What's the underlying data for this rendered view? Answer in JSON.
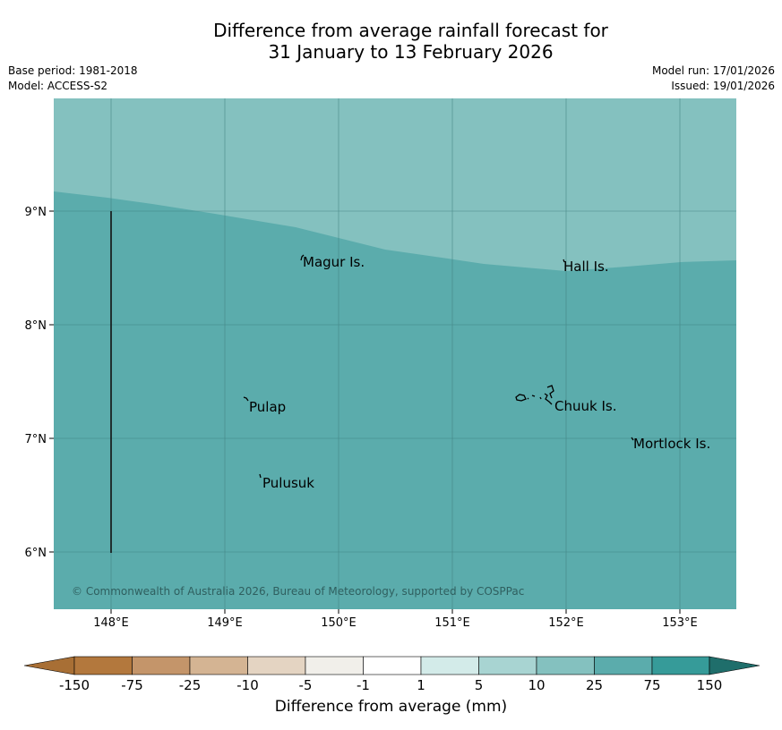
{
  "header": {
    "title_line1": "Difference from average rainfall forecast for",
    "title_line2": "31 January to 13 February 2026",
    "base_period": "Base period: 1981-2018",
    "model": "Model: ACCESS-S2",
    "model_run": "Model run: 17/01/2026",
    "issued": "Issued: 19/01/2026"
  },
  "map": {
    "lon_ticks": [
      "148°E",
      "149°E",
      "150°E",
      "151°E",
      "152°E",
      "153°E"
    ],
    "lat_ticks": [
      "9°N",
      "8°N",
      "7°N",
      "6°N"
    ],
    "places": [
      "Magur Is.",
      "Hall Is.",
      "Pulap",
      "Chuuk Is.",
      "Mortlock Is.",
      "Pulusuk"
    ],
    "copyright": "© Commonwealth of Australia 2026, Bureau of Meteorology, supported by COSPPac",
    "colors": {
      "band_10_25": "#84c1bf",
      "band_25_75": "#5bacac",
      "grid": "#3f7f7f"
    }
  },
  "colorbar": {
    "labels": [
      "-150",
      "-75",
      "-25",
      "-10",
      "-5",
      "-1",
      "1",
      "5",
      "10",
      "25",
      "75",
      "150"
    ],
    "colors": [
      "#a86f35",
      "#b3783d",
      "#c4956a",
      "#d4b493",
      "#e4d4c2",
      "#f1efea",
      "#ffffff",
      "#d3ebe9",
      "#a8d4d2",
      "#84c1bf",
      "#5bacac",
      "#369b99",
      "#1f6e6b"
    ],
    "title": "Difference from average (mm)"
  }
}
